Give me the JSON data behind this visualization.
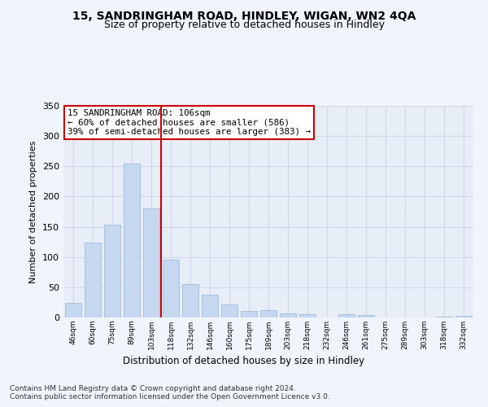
{
  "title1": "15, SANDRINGHAM ROAD, HINDLEY, WIGAN, WN2 4QA",
  "title2": "Size of property relative to detached houses in Hindley",
  "xlabel": "Distribution of detached houses by size in Hindley",
  "ylabel": "Number of detached properties",
  "categories": [
    "46sqm",
    "60sqm",
    "75sqm",
    "89sqm",
    "103sqm",
    "118sqm",
    "132sqm",
    "146sqm",
    "160sqm",
    "175sqm",
    "189sqm",
    "203sqm",
    "218sqm",
    "232sqm",
    "246sqm",
    "261sqm",
    "275sqm",
    "289sqm",
    "303sqm",
    "318sqm",
    "332sqm"
  ],
  "values": [
    24,
    124,
    153,
    255,
    180,
    95,
    55,
    38,
    21,
    11,
    12,
    7,
    6,
    0,
    5,
    4,
    0,
    0,
    0,
    2,
    3
  ],
  "bar_color": "#c5d8f0",
  "bar_edge_color": "#a0bcd8",
  "vline_color": "#cc0000",
  "annotation_text": "15 SANDRINGHAM ROAD: 106sqm\n← 60% of detached houses are smaller (586)\n39% of semi-detached houses are larger (383) →",
  "annotation_box_color": "#ffffff",
  "annotation_box_edge": "#cc0000",
  "ylim": [
    0,
    350
  ],
  "yticks": [
    0,
    50,
    100,
    150,
    200,
    250,
    300,
    350
  ],
  "footer": "Contains HM Land Registry data © Crown copyright and database right 2024.\nContains public sector information licensed under the Open Government Licence v3.0.",
  "fig_bg_color": "#f0f4fb",
  "plot_bg_color": "#e8eef8",
  "grid_color": "#d0d8e8",
  "title1_fontsize": 10,
  "title2_fontsize": 9
}
